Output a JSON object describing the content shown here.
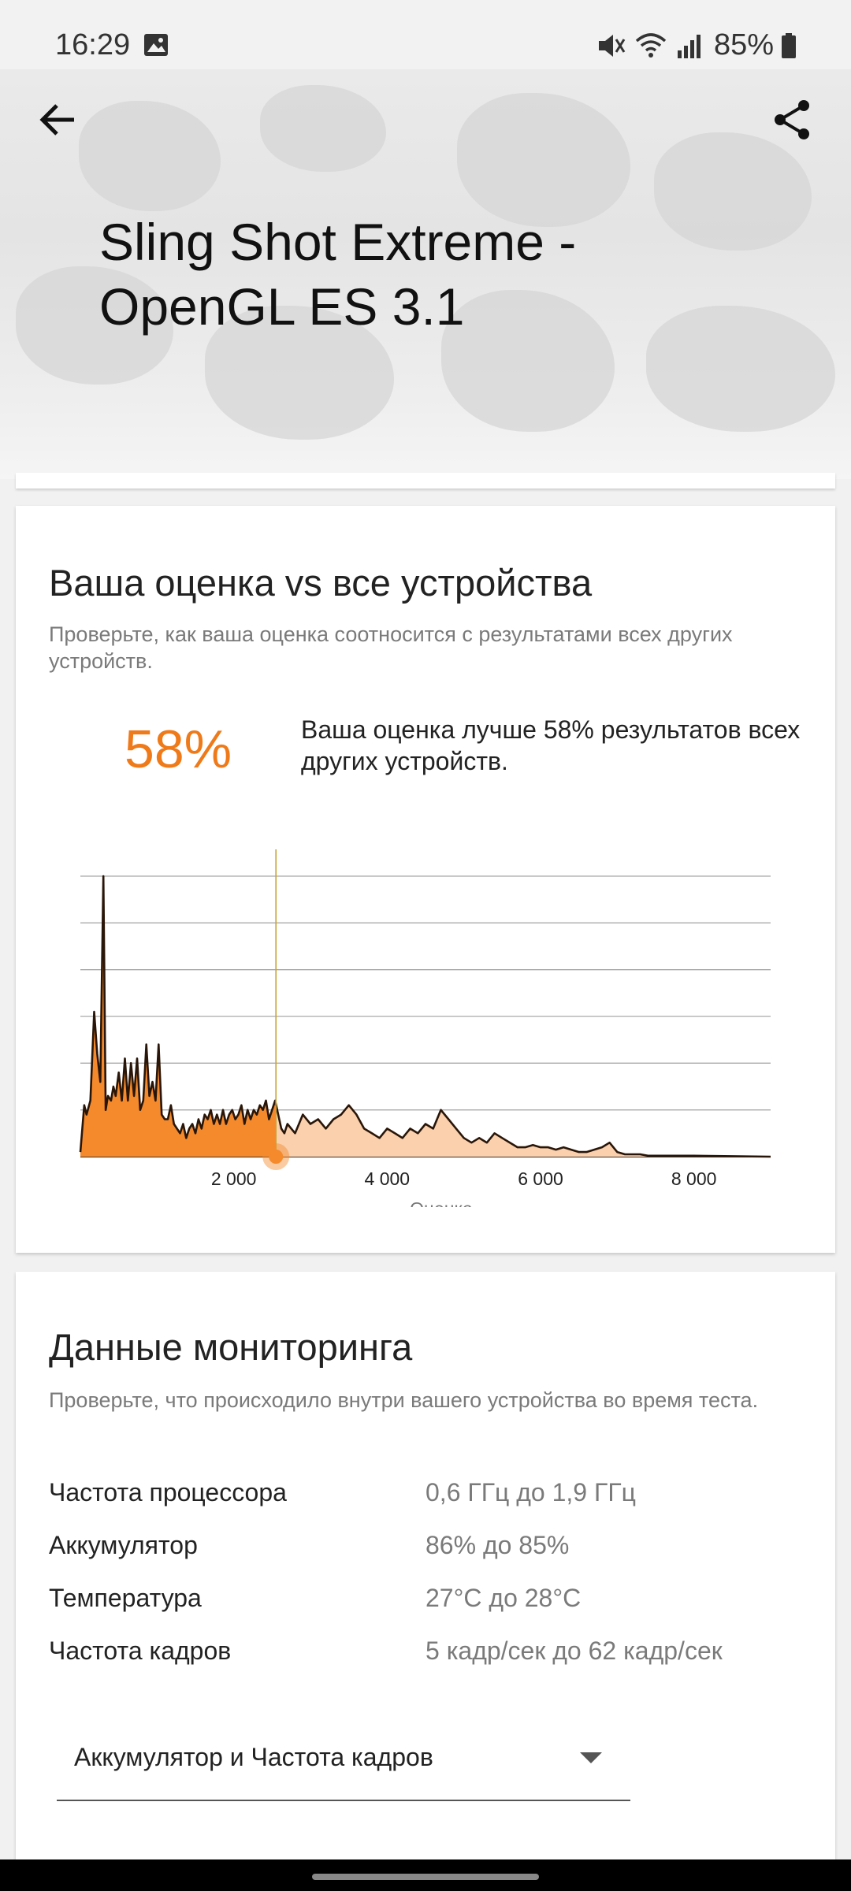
{
  "status_bar": {
    "time": "16:29",
    "battery": "85%"
  },
  "header": {
    "title": "Sling Shot Extreme - OpenGL ES 3.1"
  },
  "score_card": {
    "title": "Ваша оценка vs все устройства",
    "subtitle": "Проверьте, как ваша оценка соотносится с результатами всех других устройств.",
    "percent": "58%",
    "percent_desc": "Ваша оценка лучше 58% результатов всех других устройств."
  },
  "chart_data": {
    "type": "area",
    "xlabel": "Оценка",
    "ylabel": "",
    "x_ticks": [
      "2 000",
      "4 000",
      "6 000",
      "8 000"
    ],
    "xlim": [
      0,
      9000
    ],
    "ylim": [
      0,
      6
    ],
    "grid": true,
    "your_score": 2550,
    "accent_color": "#f58a2c",
    "light_color": "#fad0ad",
    "x": [
      0,
      50,
      80,
      130,
      180,
      220,
      260,
      300,
      330,
      360,
      400,
      430,
      460,
      500,
      540,
      580,
      620,
      660,
      700,
      740,
      780,
      820,
      860,
      900,
      940,
      980,
      1020,
      1060,
      1100,
      1140,
      1180,
      1220,
      1260,
      1300,
      1340,
      1380,
      1420,
      1460,
      1500,
      1540,
      1580,
      1620,
      1660,
      1700,
      1740,
      1780,
      1820,
      1860,
      1900,
      1940,
      1980,
      2020,
      2060,
      2100,
      2140,
      2180,
      2220,
      2260,
      2300,
      2340,
      2380,
      2420,
      2460,
      2500,
      2540,
      2580,
      2620,
      2660,
      2700,
      2800,
      2900,
      3000,
      3100,
      3200,
      3300,
      3400,
      3500,
      3600,
      3700,
      3800,
      3900,
      4000,
      4100,
      4200,
      4300,
      4400,
      4500,
      4600,
      4700,
      4800,
      4900,
      5000,
      5100,
      5200,
      5300,
      5400,
      5500,
      5600,
      5700,
      5800,
      5900,
      6000,
      6100,
      6200,
      6300,
      6400,
      6500,
      6600,
      6700,
      6800,
      6900,
      7000,
      7100,
      7200,
      7300,
      7400,
      7500,
      7600,
      7800,
      8000,
      8500,
      9000
    ],
    "values": [
      0.1,
      1.1,
      0.9,
      1.2,
      3.1,
      2.2,
      1.6,
      6.0,
      1.0,
      1.3,
      1.2,
      1.5,
      1.3,
      1.8,
      1.2,
      2.1,
      1.2,
      2.0,
      1.3,
      2.1,
      1.0,
      1.2,
      2.4,
      1.3,
      1.6,
      1.2,
      2.4,
      0.9,
      0.8,
      0.8,
      1.1,
      0.7,
      0.6,
      0.5,
      0.7,
      0.4,
      0.6,
      0.7,
      0.5,
      0.8,
      0.6,
      0.9,
      0.8,
      1.0,
      0.7,
      0.9,
      0.7,
      1.0,
      0.7,
      0.9,
      1.0,
      0.8,
      0.9,
      1.1,
      0.7,
      1.0,
      0.8,
      1.0,
      0.9,
      1.1,
      1.0,
      1.2,
      0.8,
      1.0,
      1.2,
      0.9,
      0.6,
      0.5,
      0.7,
      0.5,
      0.9,
      0.7,
      0.8,
      0.6,
      0.8,
      0.9,
      1.1,
      0.9,
      0.6,
      0.5,
      0.4,
      0.6,
      0.5,
      0.4,
      0.6,
      0.5,
      0.7,
      0.6,
      1.0,
      0.8,
      0.6,
      0.4,
      0.3,
      0.4,
      0.3,
      0.5,
      0.4,
      0.3,
      0.2,
      0.2,
      0.25,
      0.2,
      0.2,
      0.15,
      0.2,
      0.15,
      0.1,
      0.1,
      0.15,
      0.2,
      0.3,
      0.1,
      0.05,
      0.05,
      0.05,
      0.02,
      0.02,
      0.02,
      0.02,
      0.02,
      0.01,
      0.0
    ]
  },
  "monitoring": {
    "title": "Данные мониторинга",
    "subtitle": "Проверьте, что происходило внутри вашего устройства во время теста.",
    "rows": [
      {
        "label": "Частота процессора",
        "value": "0,6 ГГц до 1,9 ГГц"
      },
      {
        "label": "Аккумулятор",
        "value": "86% до 85%"
      },
      {
        "label": "Температура",
        "value": "27°C до 28°C"
      },
      {
        "label": "Частота кадров",
        "value": "5 кадр/сек до 62 кадр/сек"
      }
    ],
    "dropdown_selected": "Аккумулятор и Частота кадров"
  }
}
